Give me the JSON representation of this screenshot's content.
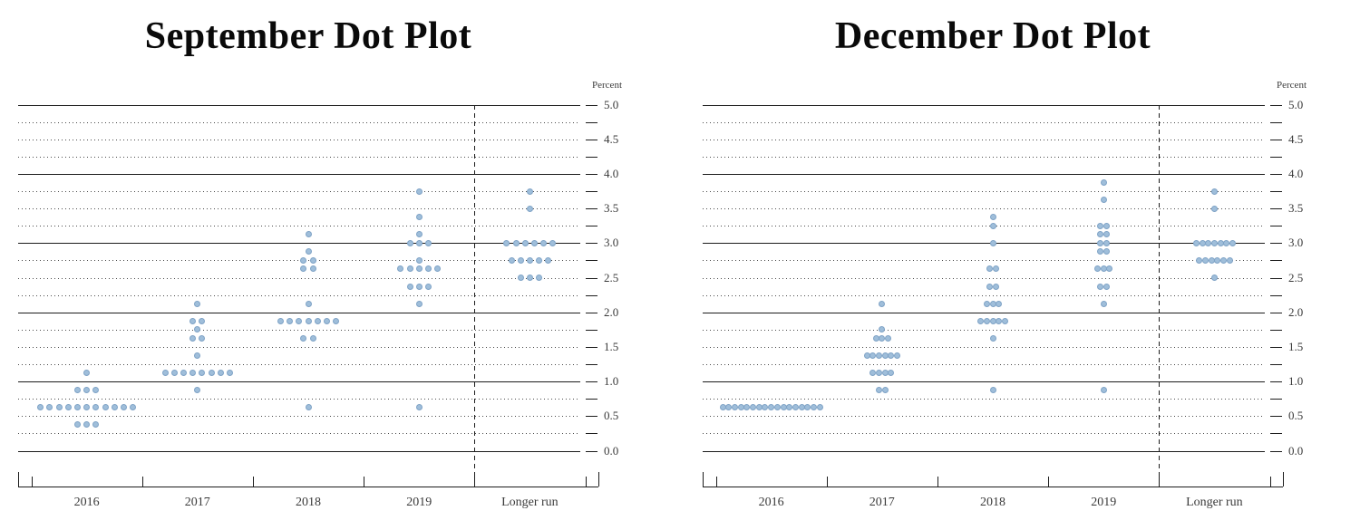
{
  "page_title": "FOMC Dot Plots",
  "colors": {
    "dot_fill": "#9fbeda",
    "dot_edge": "#7fa3c6",
    "axis_line": "#1c1c1c",
    "grid_dot": "#4a4a4a",
    "label_text": "#3a3a3a",
    "title_text": "#0a0a0a",
    "background": "#ffffff"
  },
  "charts": [
    {
      "title": "September Dot Plot",
      "unit_label": "Percent",
      "chart_data": {
        "type": "scatter",
        "subtype": "fomc-dot-plot",
        "categories": [
          "2016",
          "2017",
          "2018",
          "2019",
          "Longer run"
        ],
        "y_tick_labels": [
          "0.0",
          "0.5",
          "1.0",
          "1.5",
          "2.0",
          "2.5",
          "3.0",
          "3.5",
          "4.0",
          "4.5",
          "5.0"
        ],
        "ylim": [
          0,
          5
        ],
        "grid_step": 0.25,
        "label_step": 0.5,
        "grid_on": true,
        "separator_before_last_category": true,
        "dot_spacing_px": 10.2,
        "dots": [
          {
            "category": "2016",
            "rate": 1.125,
            "count": 1
          },
          {
            "category": "2016",
            "rate": 0.875,
            "count": 3
          },
          {
            "category": "2016",
            "rate": 0.625,
            "count": 11
          },
          {
            "category": "2016",
            "rate": 0.375,
            "count": 3
          },
          {
            "category": "2017",
            "rate": 2.125,
            "count": 1
          },
          {
            "category": "2017",
            "rate": 1.875,
            "count": 2
          },
          {
            "category": "2017",
            "rate": 1.75,
            "count": 1
          },
          {
            "category": "2017",
            "rate": 1.625,
            "count": 2
          },
          {
            "category": "2017",
            "rate": 1.375,
            "count": 1
          },
          {
            "category": "2017",
            "rate": 1.125,
            "count": 8
          },
          {
            "category": "2017",
            "rate": 0.875,
            "count": 1
          },
          {
            "category": "2018",
            "rate": 3.125,
            "count": 1
          },
          {
            "category": "2018",
            "rate": 2.875,
            "count": 1
          },
          {
            "category": "2018",
            "rate": 2.75,
            "count": 2
          },
          {
            "category": "2018",
            "rate": 2.625,
            "count": 2
          },
          {
            "category": "2018",
            "rate": 2.125,
            "count": 1
          },
          {
            "category": "2018",
            "rate": 1.875,
            "count": 7
          },
          {
            "category": "2018",
            "rate": 1.625,
            "count": 2
          },
          {
            "category": "2018",
            "rate": 0.625,
            "count": 1
          },
          {
            "category": "2019",
            "rate": 3.75,
            "count": 1
          },
          {
            "category": "2019",
            "rate": 3.375,
            "count": 1
          },
          {
            "category": "2019",
            "rate": 3.125,
            "count": 1
          },
          {
            "category": "2019",
            "rate": 3.0,
            "count": 3
          },
          {
            "category": "2019",
            "rate": 2.75,
            "count": 1
          },
          {
            "category": "2019",
            "rate": 2.625,
            "count": 5
          },
          {
            "category": "2019",
            "rate": 2.375,
            "count": 3
          },
          {
            "category": "2019",
            "rate": 2.125,
            "count": 1
          },
          {
            "category": "2019",
            "rate": 0.625,
            "count": 1
          },
          {
            "category": "Longer run",
            "rate": 3.75,
            "count": 1
          },
          {
            "category": "Longer run",
            "rate": 3.5,
            "count": 1
          },
          {
            "category": "Longer run",
            "rate": 3.0,
            "count": 6
          },
          {
            "category": "Longer run",
            "rate": 2.75,
            "count": 5
          },
          {
            "category": "Longer run",
            "rate": 2.5,
            "count": 3
          }
        ]
      }
    },
    {
      "title": "December Dot Plot",
      "unit_label": "Percent",
      "chart_data": {
        "type": "scatter",
        "subtype": "fomc-dot-plot",
        "categories": [
          "2016",
          "2017",
          "2018",
          "2019",
          "Longer run"
        ],
        "y_tick_labels": [
          "0.0",
          "0.5",
          "1.0",
          "1.5",
          "2.0",
          "2.5",
          "3.0",
          "3.5",
          "4.0",
          "4.5",
          "5.0"
        ],
        "ylim": [
          0,
          5
        ],
        "grid_step": 0.25,
        "label_step": 0.5,
        "grid_on": true,
        "separator_before_last_category": true,
        "dot_spacing_px": 6.7,
        "dots": [
          {
            "category": "2016",
            "rate": 0.625,
            "count": 17
          },
          {
            "category": "2017",
            "rate": 2.125,
            "count": 1
          },
          {
            "category": "2017",
            "rate": 1.75,
            "count": 1
          },
          {
            "category": "2017",
            "rate": 1.625,
            "count": 3
          },
          {
            "category": "2017",
            "rate": 1.375,
            "count": 6
          },
          {
            "category": "2017",
            "rate": 1.125,
            "count": 4
          },
          {
            "category": "2017",
            "rate": 0.875,
            "count": 2
          },
          {
            "category": "2018",
            "rate": 3.375,
            "count": 1
          },
          {
            "category": "2018",
            "rate": 3.25,
            "count": 1
          },
          {
            "category": "2018",
            "rate": 3.0,
            "count": 1
          },
          {
            "category": "2018",
            "rate": 2.625,
            "count": 2
          },
          {
            "category": "2018",
            "rate": 2.375,
            "count": 2
          },
          {
            "category": "2018",
            "rate": 2.125,
            "count": 3
          },
          {
            "category": "2018",
            "rate": 1.875,
            "count": 5
          },
          {
            "category": "2018",
            "rate": 1.625,
            "count": 1
          },
          {
            "category": "2018",
            "rate": 0.875,
            "count": 1
          },
          {
            "category": "2019",
            "rate": 3.875,
            "count": 1
          },
          {
            "category": "2019",
            "rate": 3.625,
            "count": 1
          },
          {
            "category": "2019",
            "rate": 3.25,
            "count": 2
          },
          {
            "category": "2019",
            "rate": 3.125,
            "count": 2
          },
          {
            "category": "2019",
            "rate": 3.0,
            "count": 2
          },
          {
            "category": "2019",
            "rate": 2.875,
            "count": 2
          },
          {
            "category": "2019",
            "rate": 2.625,
            "count": 3
          },
          {
            "category": "2019",
            "rate": 2.375,
            "count": 2
          },
          {
            "category": "2019",
            "rate": 2.125,
            "count": 1
          },
          {
            "category": "2019",
            "rate": 0.875,
            "count": 1
          },
          {
            "category": "Longer run",
            "rate": 3.75,
            "count": 1
          },
          {
            "category": "Longer run",
            "rate": 3.5,
            "count": 1
          },
          {
            "category": "Longer run",
            "rate": 3.0,
            "count": 7
          },
          {
            "category": "Longer run",
            "rate": 2.75,
            "count": 6
          },
          {
            "category": "Longer run",
            "rate": 2.5,
            "count": 1
          }
        ]
      }
    }
  ]
}
